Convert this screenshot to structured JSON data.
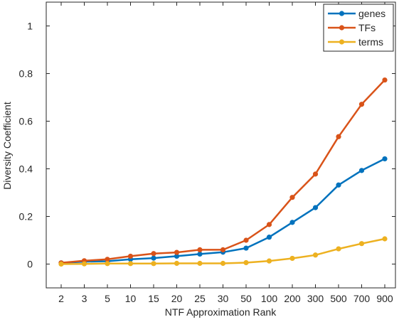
{
  "chart_data": {
    "type": "line",
    "xlabel": "NTF Approximation Rank",
    "ylabel": "Diversity Coefficient",
    "categories": [
      "2",
      "3",
      "5",
      "10",
      "15",
      "20",
      "25",
      "30",
      "50",
      "100",
      "200",
      "300",
      "500",
      "700",
      "900"
    ],
    "y_ticks": [
      "0",
      "0.2",
      "0.4",
      "0.6",
      "0.8",
      "1"
    ],
    "ylim": [
      -0.1,
      1.1
    ],
    "grid": false,
    "legend_position": "top-right",
    "series": [
      {
        "name": "genes",
        "color": "#0072BD",
        "values": [
          0.005,
          0.01,
          0.012,
          0.02,
          0.025,
          0.033,
          0.042,
          0.05,
          0.067,
          0.113,
          0.175,
          0.237,
          0.332,
          0.393,
          0.442
        ]
      },
      {
        "name": "TFs",
        "color": "#D95319",
        "values": [
          0.005,
          0.014,
          0.02,
          0.033,
          0.044,
          0.049,
          0.06,
          0.06,
          0.1,
          0.166,
          0.28,
          0.378,
          0.535,
          0.671,
          0.773
        ]
      },
      {
        "name": "terms",
        "color": "#EDB120",
        "values": [
          0.0,
          0.001,
          0.002,
          0.002,
          0.002,
          0.003,
          0.003,
          0.003,
          0.006,
          0.013,
          0.024,
          0.038,
          0.064,
          0.086,
          0.106
        ]
      }
    ]
  }
}
